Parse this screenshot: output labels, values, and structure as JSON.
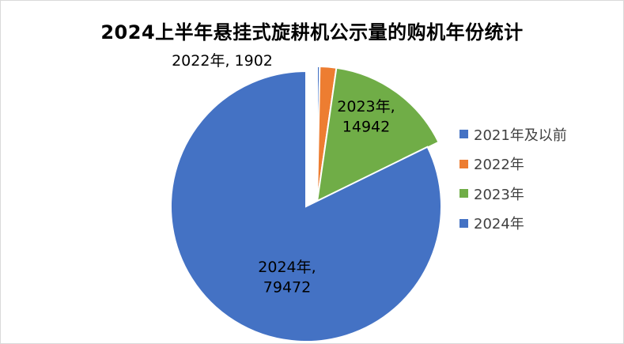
{
  "chart_data": {
    "type": "pie",
    "title": "2024上半年悬挂式旋耕机公示量的购机年份统计",
    "categories": [
      "2021年及以前",
      "2022年",
      "2023年",
      "2024年"
    ],
    "values": [
      300,
      1902,
      14942,
      79472
    ],
    "colors": [
      "#4472C4",
      "#ED7D31",
      "#70AD47",
      "#4472C4"
    ],
    "data_labels": [
      "",
      "2022年, 1902",
      "2023年,\n14942",
      "2024年,\n79472"
    ],
    "legend": "right",
    "exploded": [
      "2021年及以前",
      "2022年",
      "2023年"
    ]
  }
}
